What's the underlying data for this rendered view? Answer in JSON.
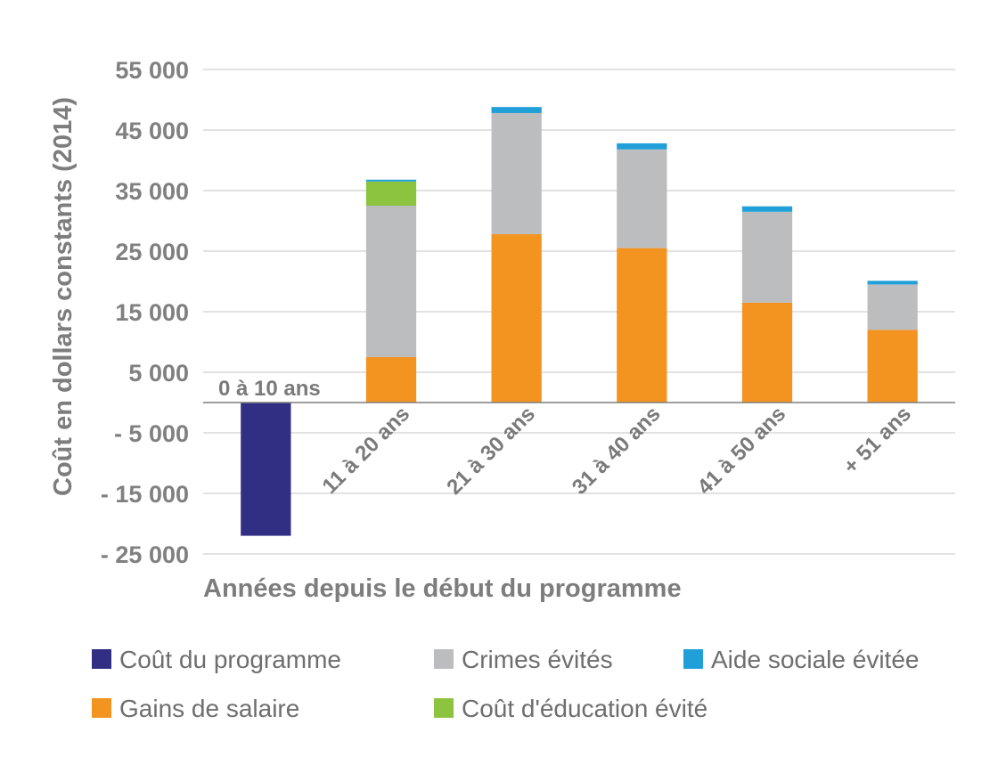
{
  "chart_data": {
    "type": "bar",
    "stacked": true,
    "categories": [
      "0 à 10 ans",
      "11 à 20 ans",
      "21 à 30 ans",
      "31 à 40 ans",
      "41 à 50 ans",
      "+ 51 ans"
    ],
    "series": [
      {
        "name": "Coût du programme",
        "color": "#312f84",
        "values": [
          -22000,
          0,
          0,
          0,
          0,
          0
        ]
      },
      {
        "name": "Gains de salaire",
        "color": "#f39420",
        "values": [
          0,
          7500,
          27800,
          25500,
          16500,
          12000
        ]
      },
      {
        "name": "Crimes évités",
        "color": "#bcbdbf",
        "values": [
          0,
          25000,
          20000,
          16300,
          15000,
          7500
        ]
      },
      {
        "name": "Coût d'éducation évité",
        "color": "#8cc43f",
        "values": [
          0,
          4000,
          0,
          0,
          0,
          0
        ]
      },
      {
        "name": "Aide sociale évitée",
        "color": "#219fd8",
        "values": [
          0,
          300,
          1000,
          1000,
          900,
          600
        ]
      }
    ],
    "yticks": [
      55000,
      45000,
      35000,
      25000,
      15000,
      5000,
      -5000,
      -15000,
      -25000
    ],
    "ytick_labels": [
      "55 000",
      "45 000",
      "35 000",
      "25 000",
      "15 000",
      "5 000",
      "- 5 000",
      "- 15 000",
      "- 25 000"
    ],
    "ylim": [
      -25000,
      55000
    ],
    "ylabel": "Coût  en dollars constants  (2014)",
    "xlabel": "Années depuis le début du programme",
    "title": "",
    "grid": true,
    "legend_position": "bottom",
    "legend_order": [
      "Coût du programme",
      "Crimes évités",
      "Aide sociale évitée",
      "Gains de salaire",
      "Coût d'éducation évité"
    ]
  }
}
